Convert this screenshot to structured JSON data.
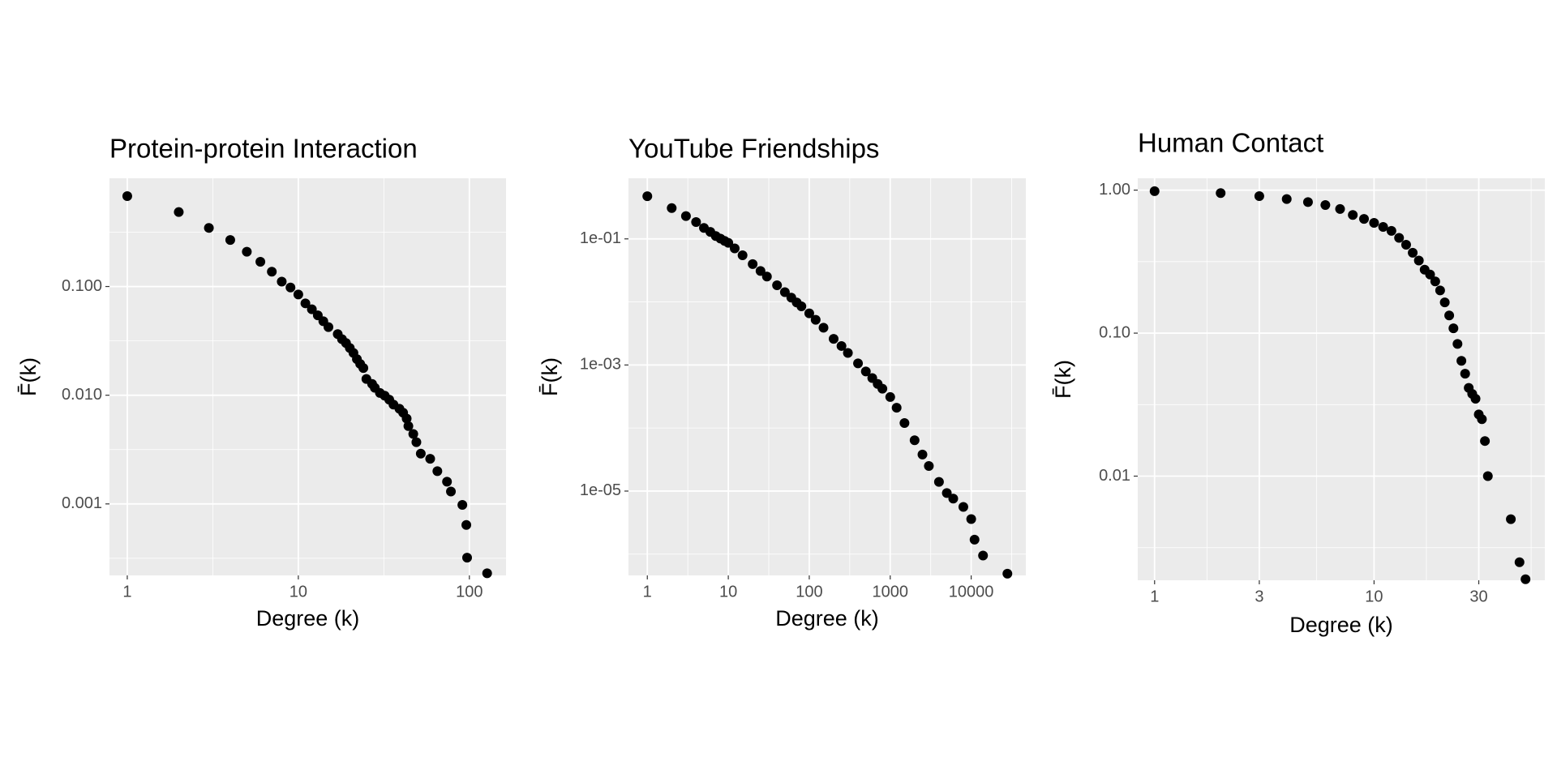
{
  "chart_data": [
    {
      "type": "scatter",
      "title": "Protein-protein Interaction",
      "x_label": "Degree (k)",
      "y_label": "F̄(k)",
      "log_x": true,
      "log_y": true,
      "grid": true,
      "color": "#000000",
      "panel_color": "#ebebeb",
      "xlim": [
        0.787,
        163.8
      ],
      "ylim": [
        0.00022,
        0.99
      ],
      "xticks": [
        1,
        10,
        100
      ],
      "yticks": [
        {
          "value": 0.1,
          "label": "0.100"
        },
        {
          "value": 0.01,
          "label": "0.010"
        },
        {
          "value": 0.001,
          "label": "0.001"
        }
      ],
      "x": [
        1,
        2,
        3,
        4,
        5,
        6,
        7,
        8,
        9,
        10,
        11,
        12,
        13,
        14,
        15,
        17,
        18,
        19,
        20,
        21,
        22,
        23,
        24,
        25,
        27,
        28,
        30,
        32,
        34,
        36,
        39,
        41,
        43,
        44,
        47,
        49,
        52,
        59,
        65,
        74,
        78,
        91,
        96,
        97,
        127
      ],
      "values": [
        0.678,
        0.484,
        0.346,
        0.268,
        0.209,
        0.169,
        0.137,
        0.111,
        0.098,
        0.0845,
        0.07,
        0.0617,
        0.0543,
        0.0479,
        0.0423,
        0.0365,
        0.0328,
        0.0302,
        0.0272,
        0.0245,
        0.0215,
        0.0194,
        0.0178,
        0.0141,
        0.0127,
        0.0117,
        0.0105,
        0.0099,
        0.0091,
        0.0082,
        0.0075,
        0.0069,
        0.0061,
        0.0052,
        0.0044,
        0.0037,
        0.0029,
        0.0026,
        0.002,
        0.0016,
        0.0013,
        0.00098,
        0.00064,
        0.00032,
        0.00023
      ]
    },
    {
      "type": "scatter",
      "title": "YouTube Friendships",
      "x_label": "Degree (k)",
      "y_label": "F̄(k)",
      "log_x": true,
      "log_y": true,
      "grid": true,
      "color": "#000000",
      "panel_color": "#ebebeb",
      "xlim": [
        0.585,
        47300
      ],
      "ylim": [
        4.6e-07,
        0.914
      ],
      "xticks": [
        1,
        10,
        100,
        1000,
        10000
      ],
      "yticks": [
        {
          "value": 0.1,
          "label": "1e-01"
        },
        {
          "value": 0.001,
          "label": "1e-03"
        },
        {
          "value": 1e-05,
          "label": "1e-05"
        }
      ],
      "x": [
        1,
        2,
        3,
        4,
        5,
        6,
        7,
        8,
        9,
        10,
        12,
        15,
        20,
        25,
        30,
        40,
        50,
        60,
        70,
        80,
        100,
        120,
        150,
        200,
        250,
        300,
        400,
        500,
        600,
        700,
        800,
        1000,
        1200,
        1500,
        2000,
        2500,
        3000,
        4000,
        5000,
        6000,
        8000,
        10000,
        11000,
        14000,
        28000
      ],
      "values": [
        0.475,
        0.308,
        0.23,
        0.185,
        0.149,
        0.129,
        0.111,
        0.101,
        0.093,
        0.0865,
        0.0706,
        0.055,
        0.0398,
        0.031,
        0.0253,
        0.0184,
        0.0143,
        0.0117,
        0.0098,
        0.0085,
        0.0066,
        0.0052,
        0.0039,
        0.0026,
        0.002,
        0.00155,
        0.00106,
        0.00079,
        0.00062,
        0.0005,
        0.00042,
        0.00031,
        0.00021,
        0.00012,
        6.4e-05,
        3.8e-05,
        2.5e-05,
        1.4e-05,
        9.3e-06,
        7.6e-06,
        5.6e-06,
        3.6e-06,
        1.7e-06,
        9.5e-07,
        4.9e-07
      ]
    },
    {
      "type": "scatter",
      "title": "Human Contact",
      "x_label": "Degree (k)",
      "y_label": "F̄(k)",
      "log_x": true,
      "log_y": true,
      "grid": true,
      "color": "#000000",
      "panel_color": "#ebebeb",
      "xlim": [
        0.838,
        60
      ],
      "ylim": [
        0.00187,
        1.21
      ],
      "xticks": [
        1,
        3,
        10,
        30
      ],
      "yticks": [
        {
          "value": 1,
          "label": "1.00"
        },
        {
          "value": 0.1,
          "label": "0.10"
        },
        0.01
      ],
      "x": [
        1,
        2,
        3,
        4,
        5,
        6,
        7,
        8,
        9,
        10,
        11,
        12,
        13,
        14,
        15,
        16,
        17,
        18,
        19,
        20,
        21,
        22,
        23,
        24,
        25,
        26,
        27,
        28,
        29,
        30,
        31,
        32,
        33,
        42,
        46,
        49
      ],
      "values": [
        0.984,
        0.953,
        0.908,
        0.866,
        0.825,
        0.787,
        0.738,
        0.67,
        0.629,
        0.59,
        0.553,
        0.519,
        0.464,
        0.415,
        0.365,
        0.322,
        0.278,
        0.257,
        0.23,
        0.199,
        0.164,
        0.133,
        0.108,
        0.084,
        0.064,
        0.052,
        0.0414,
        0.0376,
        0.0348,
        0.027,
        0.025,
        0.0176,
        0.01,
        0.005,
        0.0025,
        0.0019
      ]
    }
  ]
}
